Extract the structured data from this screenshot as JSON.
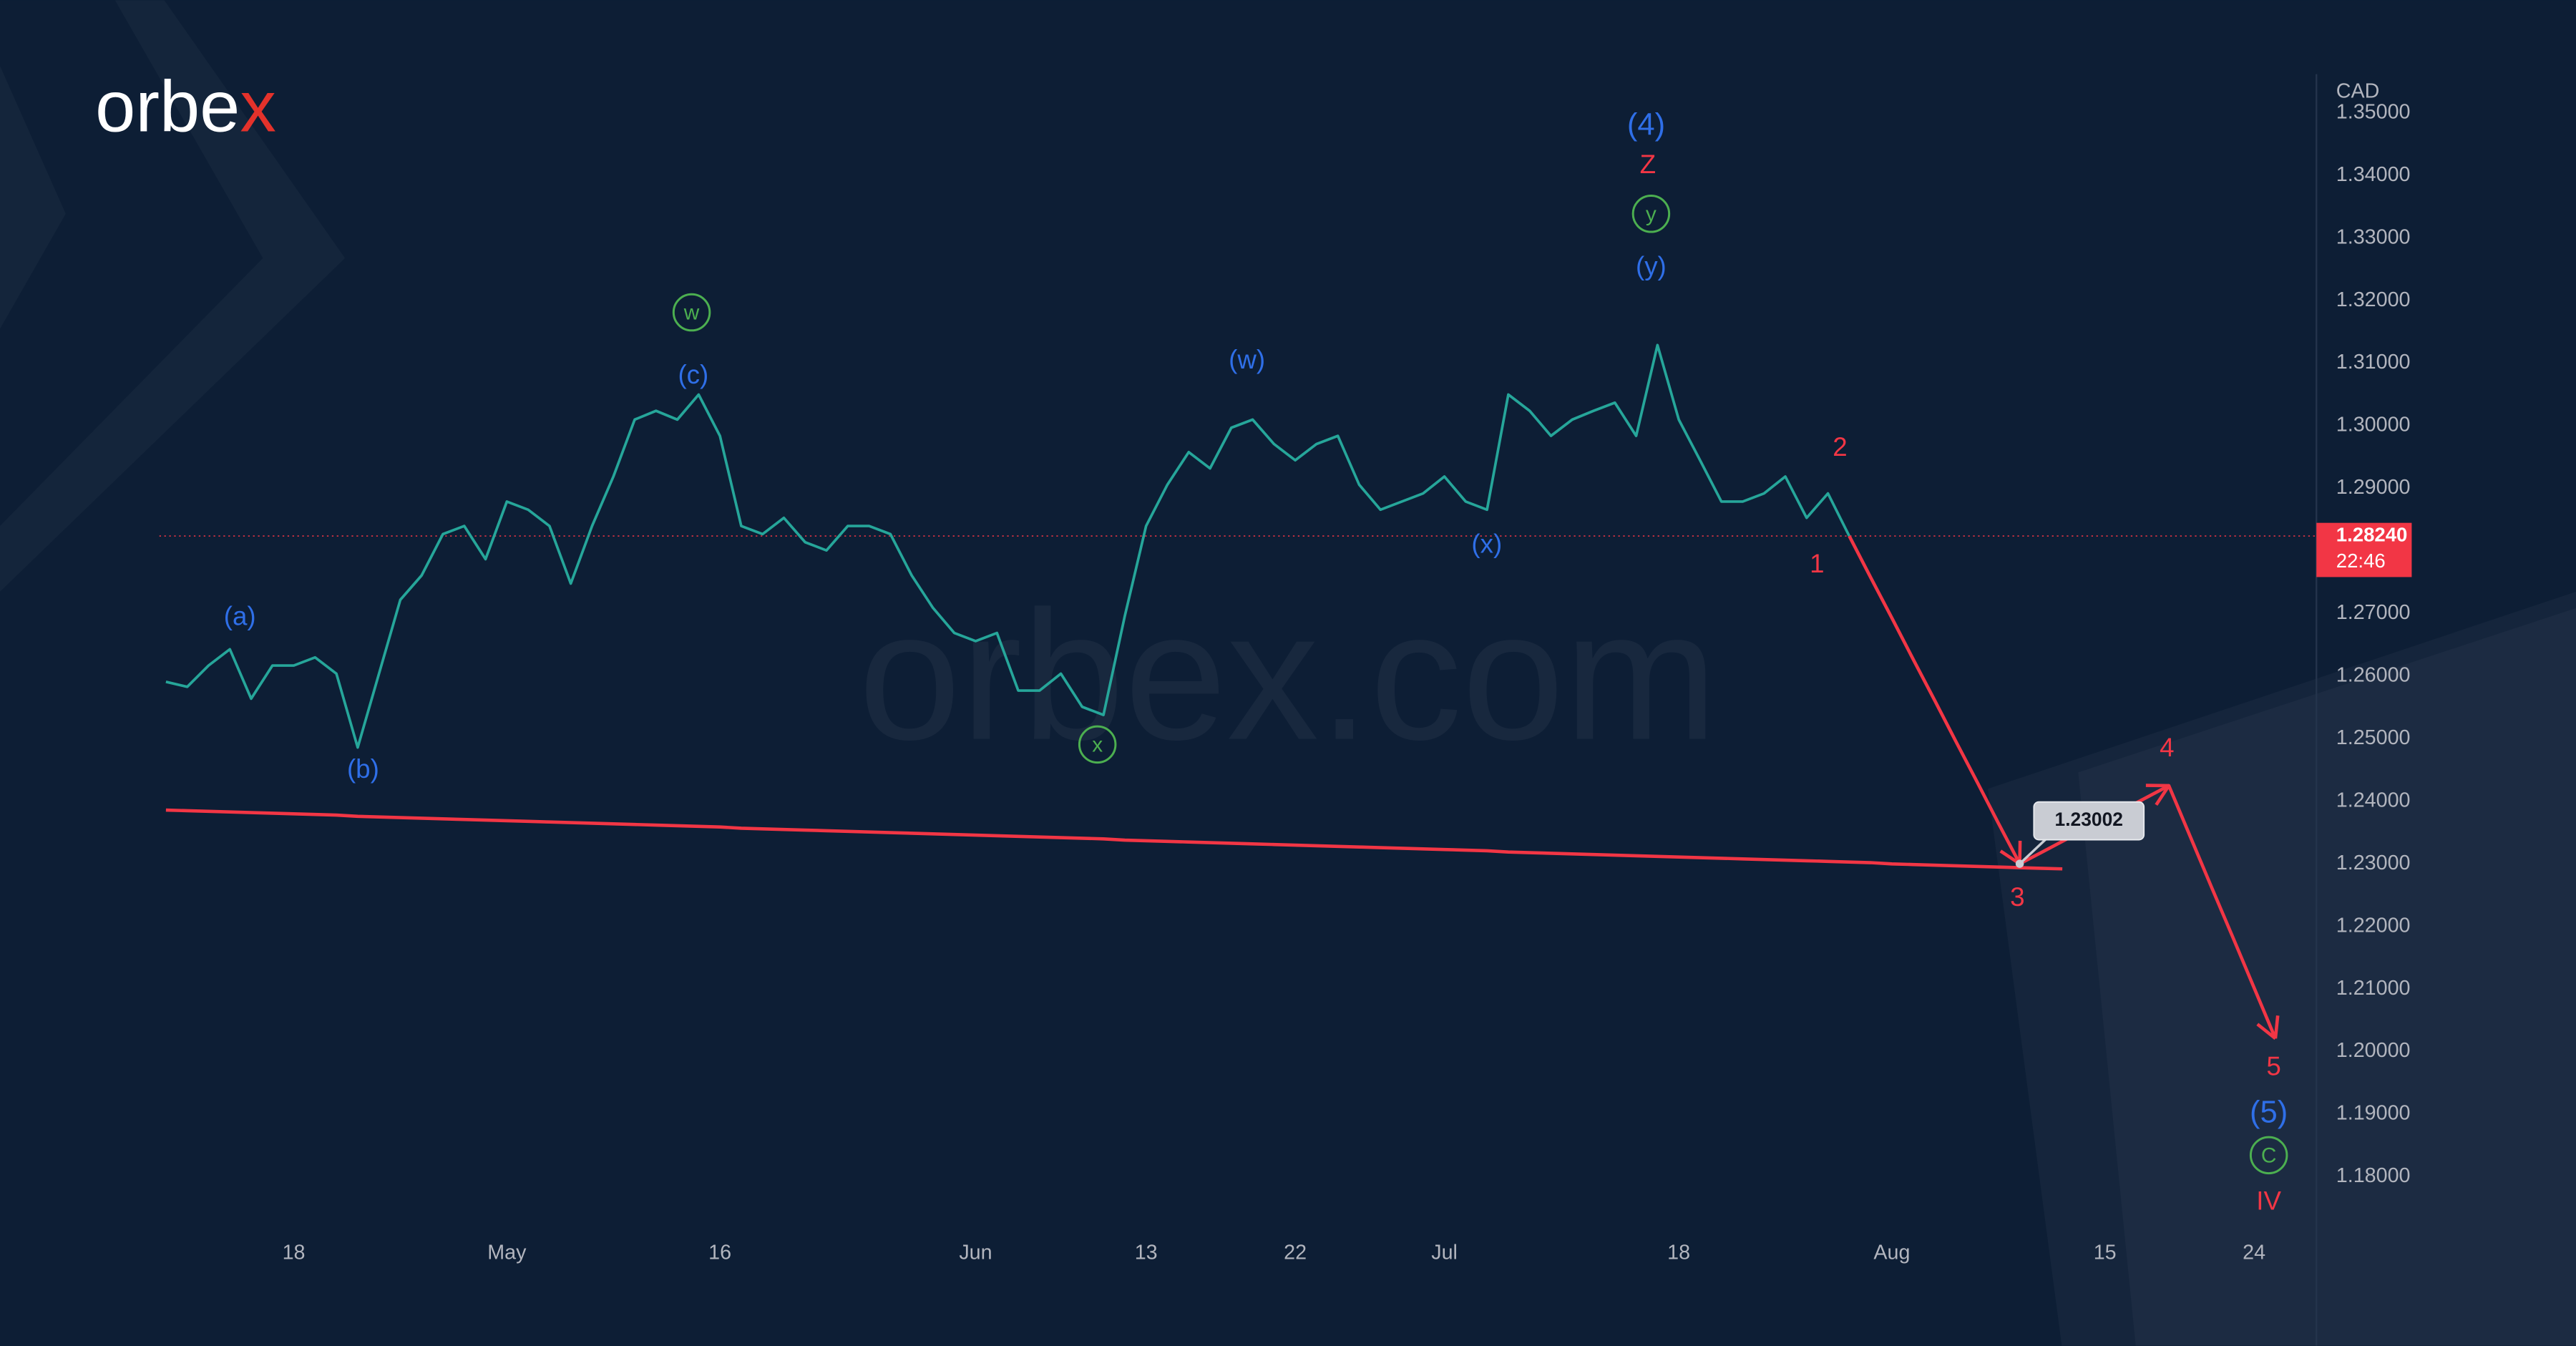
{
  "chart_data": {
    "type": "line",
    "logo": {
      "text": "orbe",
      "accent": "x"
    },
    "watermark": "orbex.com",
    "y_axis_unit": "CAD",
    "categories": [
      null,
      null,
      null,
      null,
      null,
      null,
      "18",
      null,
      null,
      null,
      null,
      null,
      null,
      null,
      null,
      null,
      "May",
      null,
      null,
      null,
      null,
      null,
      null,
      null,
      null,
      null,
      "16",
      null,
      null,
      null,
      null,
      null,
      null,
      null,
      null,
      null,
      null,
      null,
      "Jun",
      null,
      null,
      null,
      null,
      null,
      null,
      null,
      "13",
      null,
      null,
      null,
      null,
      null,
      null,
      "22",
      null,
      null,
      null,
      null,
      null,
      null,
      "Jul",
      null,
      null,
      null,
      null,
      null,
      null,
      null,
      null,
      null,
      null,
      "18",
      null,
      null,
      null,
      null,
      null,
      null,
      null,
      null,
      null,
      "Aug",
      null,
      null,
      null,
      null,
      null,
      null,
      null,
      null,
      null,
      "15",
      null,
      null,
      null,
      null,
      null,
      null,
      "24",
      null,
      null
    ],
    "series": [
      {
        "color": "#26a69a",
        "width": 1.6,
        "values": [
          1.2591,
          1.2583,
          1.2617,
          1.2643,
          1.2564,
          1.2617,
          1.2617,
          1.263,
          1.2604,
          1.2486,
          1.2604,
          1.2722,
          1.2761,
          1.2827,
          1.284,
          1.2787,
          1.2879,
          1.2866,
          1.284,
          1.2748,
          1.284,
          1.2919,
          1.301,
          1.3024,
          1.301,
          1.305,
          1.2984,
          1.284,
          1.2827,
          1.2853,
          1.2814,
          1.2801,
          1.284,
          1.284,
          1.2827,
          1.2761,
          1.2709,
          1.2669,
          1.2656,
          1.2669,
          1.2577,
          1.2577,
          1.2604,
          1.2551,
          1.2538,
          1.2696,
          1.284,
          1.2906,
          1.2958,
          1.2932,
          1.2997,
          1.301,
          1.2971,
          1.2945,
          1.2971,
          1.2984,
          1.2906,
          1.2866,
          1.2879,
          1.2892,
          1.2919,
          1.2879,
          1.2866,
          1.305,
          1.3024,
          1.2984,
          1.301,
          1.3024,
          1.3037,
          1.2984,
          1.3129,
          1.301,
          1.2945,
          1.2879,
          1.2879,
          1.2892,
          1.2919,
          1.2853,
          1.2892,
          1.2824,
          null,
          null,
          null,
          null,
          null,
          null,
          null,
          null,
          null,
          null,
          null,
          null,
          null,
          null,
          null,
          null,
          null,
          null,
          null,
          null,
          null
        ]
      },
      {
        "color": "#f23645",
        "width": 2,
        "arrows": true,
        "values": [
          null,
          null,
          null,
          null,
          null,
          null,
          null,
          null,
          null,
          null,
          null,
          null,
          null,
          null,
          null,
          null,
          null,
          null,
          null,
          null,
          null,
          null,
          null,
          null,
          null,
          null,
          null,
          null,
          null,
          null,
          null,
          null,
          null,
          null,
          null,
          null,
          null,
          null,
          null,
          null,
          null,
          null,
          null,
          null,
          null,
          null,
          null,
          null,
          null,
          null,
          null,
          null,
          null,
          null,
          null,
          null,
          null,
          null,
          null,
          null,
          null,
          null,
          null,
          null,
          null,
          null,
          null,
          null,
          null,
          null,
          null,
          null,
          null,
          null,
          null,
          null,
          null,
          null,
          null,
          1.2824,
          1.2758,
          1.2693,
          1.2627,
          1.2562,
          1.2496,
          1.2431,
          1.2365,
          1.23002,
          1.2318,
          1.2336,
          1.2354,
          1.2371,
          1.2389,
          1.2407,
          1.2425,
          1.2344,
          1.2263,
          1.2183,
          1.2102,
          1.2021,
          null
        ]
      },
      {
        "color": "#f23645",
        "width": 2,
        "values": [
          1.2386,
          1.2385,
          1.2384,
          1.2383,
          1.2382,
          1.2381,
          1.238,
          1.2379,
          1.2378,
          1.2376,
          1.2375,
          1.2374,
          1.2373,
          1.2372,
          1.2371,
          1.237,
          1.2369,
          1.2368,
          1.2367,
          1.2366,
          1.2365,
          1.2364,
          1.2363,
          1.2362,
          1.2361,
          1.236,
          1.2359,
          1.2357,
          1.2356,
          1.2355,
          1.2354,
          1.2353,
          1.2352,
          1.2351,
          1.235,
          1.2349,
          1.2348,
          1.2347,
          1.2346,
          1.2345,
          1.2344,
          1.2343,
          1.2342,
          1.2341,
          1.234,
          1.2338,
          1.2337,
          1.2336,
          1.2335,
          1.2334,
          1.2333,
          1.2332,
          1.2331,
          1.233,
          1.2329,
          1.2328,
          1.2327,
          1.2326,
          1.2325,
          1.2324,
          1.2323,
          1.2322,
          1.2321,
          1.2319,
          1.2318,
          1.2317,
          1.2316,
          1.2315,
          1.2314,
          1.2313,
          1.2312,
          1.2311,
          1.231,
          1.2309,
          1.2308,
          1.2307,
          1.2306,
          1.2305,
          1.2304,
          1.2303,
          1.2302,
          1.23,
          1.2299,
          1.2298,
          1.2297,
          1.2296,
          1.2295,
          1.2294,
          1.2293,
          1.2292,
          null,
          null,
          null,
          null,
          null,
          null,
          null,
          null,
          null,
          null,
          null
        ]
      }
    ],
    "callout_point": {
      "series": 1,
      "index": 87
    },
    "last_price": {
      "value": 1.2824,
      "label": "1.28240",
      "color": "#f23645"
    },
    "countdown": "22:46",
    "ylim": [
      1.1719,
      1.3562
    ],
    "yticks": [
      {
        "value": 1.18,
        "label": "1.18000"
      },
      {
        "value": 1.19,
        "label": "1.19000"
      },
      {
        "value": 1.2,
        "label": "1.20000"
      },
      {
        "value": 1.21,
        "label": "1.21000"
      },
      {
        "value": 1.22,
        "label": "1.22000"
      },
      {
        "value": 1.23,
        "label": "1.23000"
      },
      {
        "value": 1.24,
        "label": "1.24000"
      },
      {
        "value": 1.25,
        "label": "1.25000"
      },
      {
        "value": 1.26,
        "label": "1.26000"
      },
      {
        "value": 1.27,
        "label": "1.27000"
      },
      {
        "value": 1.28,
        "label": "1.28000"
      },
      {
        "value": 1.29,
        "label": "1.29000"
      },
      {
        "value": 1.3,
        "label": "1.30000"
      },
      {
        "value": 1.31,
        "label": "1.31000"
      },
      {
        "value": 1.32,
        "label": "1.32000"
      },
      {
        "value": 1.33,
        "label": "1.33000"
      },
      {
        "value": 1.34,
        "label": "1.34000"
      },
      {
        "value": 1.35,
        "label": "1.35000"
      }
    ],
    "grid": false,
    "annotations": [
      {
        "text": "(4)",
        "color": "#2f6fe8"
      },
      {
        "text": "Z",
        "color": "#f23645"
      },
      {
        "text": "y",
        "color": "#4caf50",
        "circled": true
      },
      {
        "text": "(y)",
        "color": "#2f6fe8"
      },
      {
        "text": "w",
        "color": "#4caf50",
        "circled": true
      },
      {
        "text": "(c)",
        "color": "#2f6fe8"
      },
      {
        "text": "(a)",
        "color": "#2f6fe8"
      },
      {
        "text": "(b)",
        "color": "#2f6fe8"
      },
      {
        "text": "(w)",
        "color": "#2f6fe8"
      },
      {
        "text": "(x)",
        "color": "#2f6fe8"
      },
      {
        "text": "x",
        "color": "#4caf50",
        "circled": true
      },
      {
        "text": "2",
        "color": "#f23645"
      },
      {
        "text": "1",
        "color": "#f23645"
      },
      {
        "text": "3",
        "color": "#f23645"
      },
      {
        "text": "4",
        "color": "#f23645"
      },
      {
        "text": "5",
        "color": "#f23645"
      },
      {
        "text": "(5)",
        "color": "#2f6fe8"
      },
      {
        "text": "C",
        "color": "#4caf50",
        "circled": true
      },
      {
        "text": "IV",
        "color": "#f23645"
      }
    ]
  }
}
